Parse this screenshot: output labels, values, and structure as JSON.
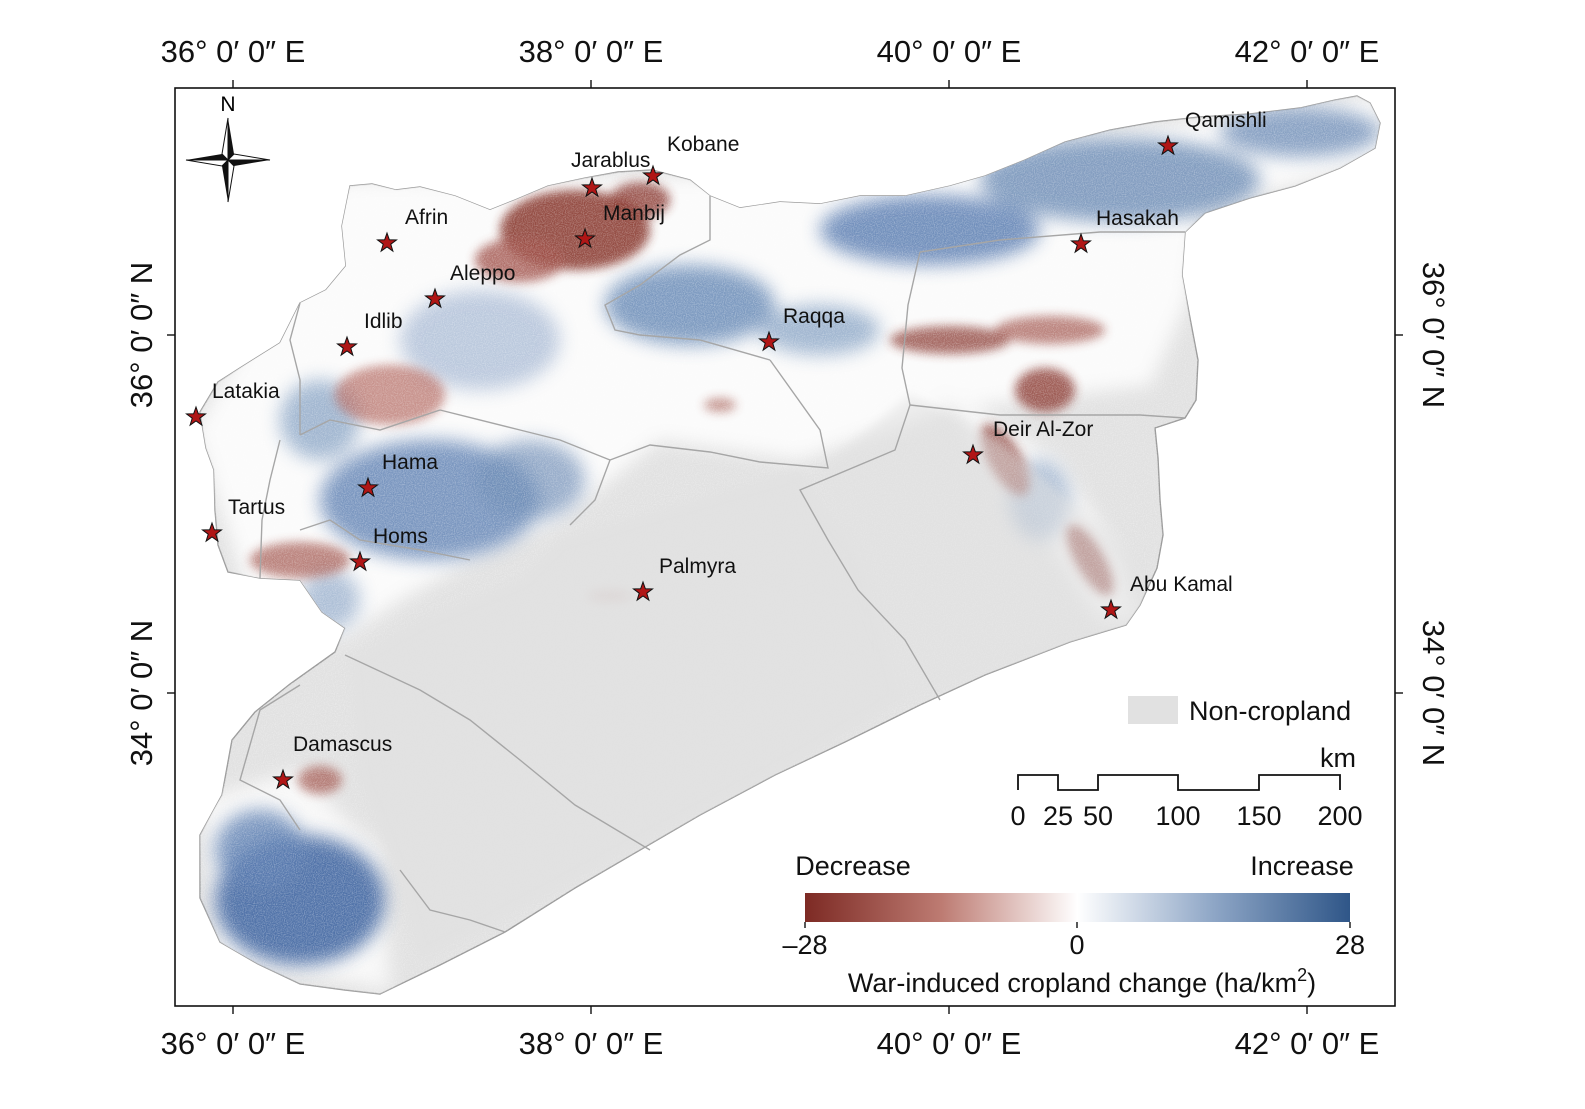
{
  "map": {
    "graticule": {
      "lon_labels": [
        "36° 0′ 0″ E",
        "38° 0′ 0″ E",
        "40° 0′ 0″ E",
        "42° 0′ 0″ E"
      ],
      "lat_labels": [
        "36° 0′ 0″ N",
        "34° 0′ 0″ N"
      ]
    },
    "north_arrow": {
      "label": "N"
    },
    "cities": [
      {
        "id": "qamishli",
        "name": "Qamishli"
      },
      {
        "id": "kobane",
        "name": "Kobane"
      },
      {
        "id": "jarablus",
        "name": "Jarablus"
      },
      {
        "id": "manbij",
        "name": "Manbij"
      },
      {
        "id": "afrin",
        "name": "Afrin"
      },
      {
        "id": "hasakah",
        "name": "Hasakah"
      },
      {
        "id": "aleppo",
        "name": "Aleppo"
      },
      {
        "id": "idlib",
        "name": "Idlib"
      },
      {
        "id": "raqqa",
        "name": "Raqqa"
      },
      {
        "id": "latakia",
        "name": "Latakia"
      },
      {
        "id": "deir-al-zor",
        "name": "Deir Al-Zor"
      },
      {
        "id": "hama",
        "name": "Hama"
      },
      {
        "id": "tartus",
        "name": "Tartus"
      },
      {
        "id": "homs",
        "name": "Homs"
      },
      {
        "id": "palmyra",
        "name": "Palmyra"
      },
      {
        "id": "abu-kamal",
        "name": "Abu Kamal"
      },
      {
        "id": "damascus",
        "name": "Damascus"
      }
    ],
    "legend": {
      "noncropland_label": "Non-cropland",
      "scale_unit": "km",
      "scale_ticks": [
        "0",
        "25",
        "50",
        "100",
        "150",
        "200"
      ],
      "colorbar": {
        "left_label": "Decrease",
        "right_label": "Increase",
        "min_label": "–28",
        "mid_label": "0",
        "max_label": "28",
        "title": "War-induced cropland change (ha/km",
        "title_sup": "2",
        "title_end": ")",
        "min": -28,
        "max": 28
      }
    },
    "colors": {
      "non_cropland": "#e1e1e1",
      "decrease": "#7d2a24",
      "increase": "#2f5688",
      "neutral": "#ffffff",
      "star": "#b01616",
      "boundary": "#aaaaaa"
    }
  }
}
